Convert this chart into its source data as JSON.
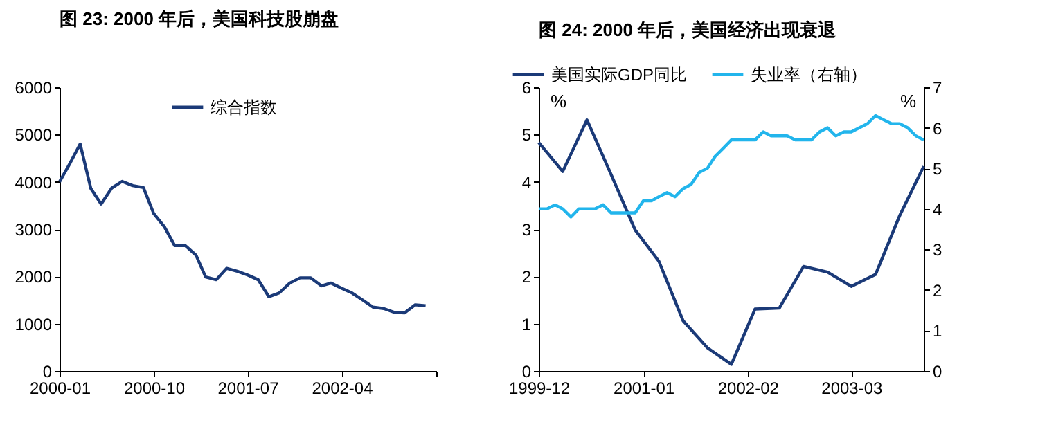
{
  "chart_data": [
    {
      "type": "line",
      "title": "图 23:  2000 年后，美国科技股崩盘",
      "x": [
        "2000-01",
        "2000-02",
        "2000-03",
        "2000-04",
        "2000-05",
        "2000-06",
        "2000-07",
        "2000-08",
        "2000-09",
        "2000-10",
        "2000-11",
        "2000-12",
        "2001-01",
        "2001-02",
        "2001-03",
        "2001-04",
        "2001-05",
        "2001-06",
        "2001-07",
        "2001-08",
        "2001-09",
        "2001-10",
        "2001-11",
        "2001-12",
        "2002-01",
        "2002-02",
        "2002-03",
        "2002-04",
        "2002-05",
        "2002-06",
        "2002-07",
        "2002-08",
        "2002-09",
        "2002-10",
        "2002-11",
        "2002-12"
      ],
      "series": [
        {
          "name": "综合指数",
          "color": "#1b3a78",
          "values": [
            4000,
            4400,
            4800,
            3860,
            3530,
            3870,
            4010,
            3920,
            3880,
            3330,
            3050,
            2650,
            2650,
            2450,
            1990,
            1930,
            2170,
            2110,
            2030,
            1930,
            1570,
            1650,
            1860,
            1970,
            1970,
            1800,
            1860,
            1750,
            1650,
            1500,
            1350,
            1320,
            1240,
            1230,
            1400,
            1380
          ]
        }
      ],
      "xlim": [
        "2000-01",
        "2003-01"
      ],
      "xticks": [
        {
          "value": "2000-01",
          "label": "2000-01"
        },
        {
          "value": "2000-10",
          "label": "2000-10"
        },
        {
          "value": "2001-07",
          "label": "2001-07"
        },
        {
          "value": "2002-04",
          "label": "2002-04"
        },
        {
          "value": "2003-01",
          "label": null
        }
      ],
      "ylim": [
        0,
        6000
      ],
      "yticks": [
        0,
        1000,
        2000,
        3000,
        4000,
        5000,
        6000
      ],
      "grid": false,
      "legend": "top"
    },
    {
      "type": "line",
      "title": "图 24:  2000 年后，美国经济出现衰退",
      "ylabel": "%",
      "y2label": "%",
      "series": [
        {
          "name": "美国实际GDP同比",
          "color": "#1b3a78",
          "x": [
            "1999-12",
            "2000-03",
            "2000-06",
            "2000-09",
            "2000-12",
            "2001-03",
            "2001-06",
            "2001-09",
            "2001-12",
            "2002-03",
            "2002-06",
            "2002-09",
            "2002-12",
            "2003-03",
            "2003-06",
            "2003-09",
            "2003-12"
          ],
          "values": [
            4.83,
            4.22,
            5.31,
            4.15,
            2.98,
            2.32,
            1.06,
            0.49,
            0.14,
            1.31,
            1.33,
            2.21,
            2.09,
            1.79,
            2.04,
            3.29,
            4.33
          ]
        },
        {
          "name": "失业率（右轴）",
          "color": "#22b5ec",
          "axis": "y2",
          "x": [
            "1999-12",
            "2000-01",
            "2000-02",
            "2000-03",
            "2000-04",
            "2000-05",
            "2000-06",
            "2000-07",
            "2000-08",
            "2000-09",
            "2000-10",
            "2000-11",
            "2000-12",
            "2001-01",
            "2001-02",
            "2001-03",
            "2001-04",
            "2001-05",
            "2001-06",
            "2001-07",
            "2001-08",
            "2001-09",
            "2001-10",
            "2001-11",
            "2001-12",
            "2002-01",
            "2002-02",
            "2002-03",
            "2002-04",
            "2002-05",
            "2002-06",
            "2002-07",
            "2002-08",
            "2002-09",
            "2002-10",
            "2002-11",
            "2002-12",
            "2003-01",
            "2003-02",
            "2003-03",
            "2003-04",
            "2003-05",
            "2003-06",
            "2003-07",
            "2003-08",
            "2003-09",
            "2003-10",
            "2003-11",
            "2003-12"
          ],
          "values": [
            4.0,
            4.0,
            4.1,
            4.0,
            3.8,
            4.0,
            4.0,
            4.0,
            4.1,
            3.9,
            3.9,
            3.9,
            3.9,
            4.2,
            4.2,
            4.3,
            4.4,
            4.3,
            4.5,
            4.6,
            4.9,
            5.0,
            5.3,
            5.5,
            5.7,
            5.7,
            5.7,
            5.7,
            5.9,
            5.8,
            5.8,
            5.8,
            5.7,
            5.7,
            5.7,
            5.9,
            6.0,
            5.8,
            5.9,
            5.9,
            6.0,
            6.1,
            6.3,
            6.2,
            6.1,
            6.1,
            6.0,
            5.8,
            5.7
          ]
        }
      ],
      "xlim": [
        "1999-12",
        "2003-12"
      ],
      "xticks": [
        {
          "value": "1999-12",
          "label": "1999-12"
        },
        {
          "value": "2001-01",
          "label": "2001-01"
        },
        {
          "value": "2002-02",
          "label": "2002-02"
        },
        {
          "value": "2003-03",
          "label": "2003-03"
        }
      ],
      "ylim": [
        0,
        6
      ],
      "yticks": [
        0,
        1,
        2,
        3,
        4,
        5,
        6
      ],
      "y2lim": [
        0,
        7
      ],
      "y2ticks": [
        0,
        1,
        2,
        3,
        4,
        5,
        6,
        7
      ],
      "grid": false,
      "legend": "top"
    }
  ]
}
